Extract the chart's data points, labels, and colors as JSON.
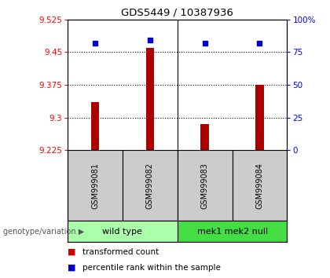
{
  "title": "GDS5449 / 10387936",
  "samples": [
    "GSM999081",
    "GSM999082",
    "GSM999083",
    "GSM999084"
  ],
  "bar_values": [
    9.335,
    9.46,
    9.285,
    9.375
  ],
  "percentile_values": [
    82,
    84,
    82,
    82
  ],
  "ylim_left": [
    9.225,
    9.525
  ],
  "ylim_right": [
    0,
    100
  ],
  "yticks_left": [
    9.225,
    9.3,
    9.375,
    9.45,
    9.525
  ],
  "ytick_labels_left": [
    "9.225",
    "9.3",
    "9.375",
    "9.45",
    "9.525"
  ],
  "yticks_right": [
    0,
    25,
    50,
    75,
    100
  ],
  "ytick_labels_right": [
    "0",
    "25",
    "50",
    "75",
    "100%"
  ],
  "hlines": [
    9.3,
    9.375,
    9.45
  ],
  "bar_color": "#aa0000",
  "point_color": "#0000cc",
  "group_info": [
    {
      "label": "wild type",
      "xmin": -0.5,
      "xmax": 1.5,
      "color": "#aaffaa"
    },
    {
      "label": "mek1 mek2 null",
      "xmin": 1.5,
      "xmax": 3.5,
      "color": "#44dd44"
    }
  ],
  "genotype_label": "genotype/variation",
  "legend_items": [
    "transformed count",
    "percentile rank within the sample"
  ],
  "legend_colors": [
    "#cc0000",
    "#0000cc"
  ],
  "bg_color_plot": "#ffffff",
  "sample_box_color": "#cccccc",
  "bar_width": 0.15
}
